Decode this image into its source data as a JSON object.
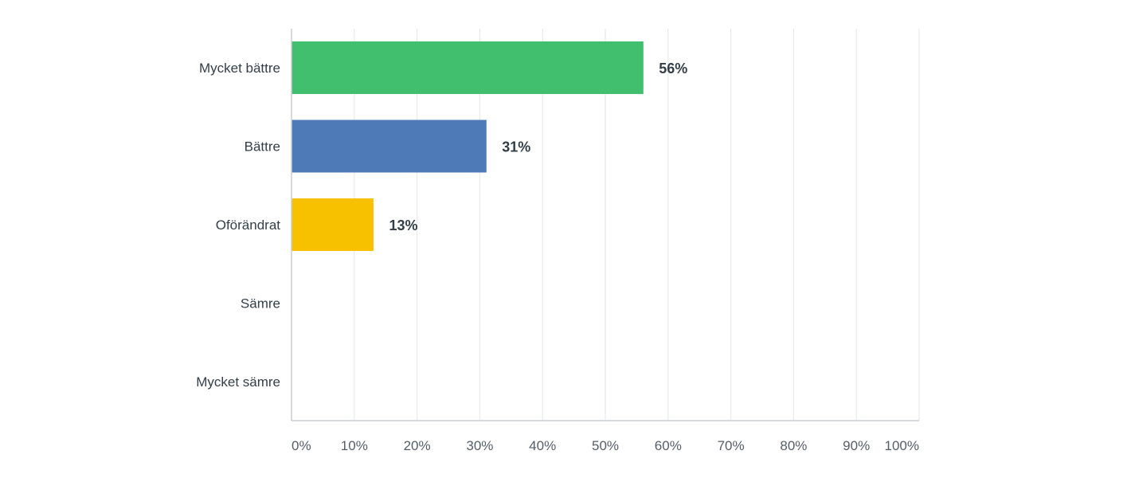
{
  "chart_data": {
    "type": "bar",
    "orientation": "horizontal",
    "categories": [
      "Mycket bättre",
      "Bättre",
      "Oförändrat",
      "Sämre",
      "Mycket sämre"
    ],
    "values": [
      56,
      31,
      13,
      0,
      0
    ],
    "value_labels": [
      "56%",
      "31%",
      "13%",
      "",
      ""
    ],
    "bar_colors": [
      "#41bf6e",
      "#4e7bb8",
      "#f8c100",
      "#e05a4a",
      "#7a5ab0"
    ],
    "xlim": [
      0,
      100
    ],
    "x_ticks": [
      0,
      10,
      20,
      30,
      40,
      50,
      60,
      70,
      80,
      90,
      100
    ],
    "x_tick_labels": [
      "0%",
      "10%",
      "20%",
      "30%",
      "40%",
      "50%",
      "60%",
      "70%",
      "80%",
      "90%",
      "100%"
    ],
    "grid": true,
    "title": "",
    "xlabel": "",
    "ylabel": ""
  },
  "colors": {
    "grid": "#e3e5e8",
    "axis": "#c9cdd2",
    "category_text": "#333e48",
    "tick_text": "#545e68",
    "value_text": "#333e48"
  }
}
